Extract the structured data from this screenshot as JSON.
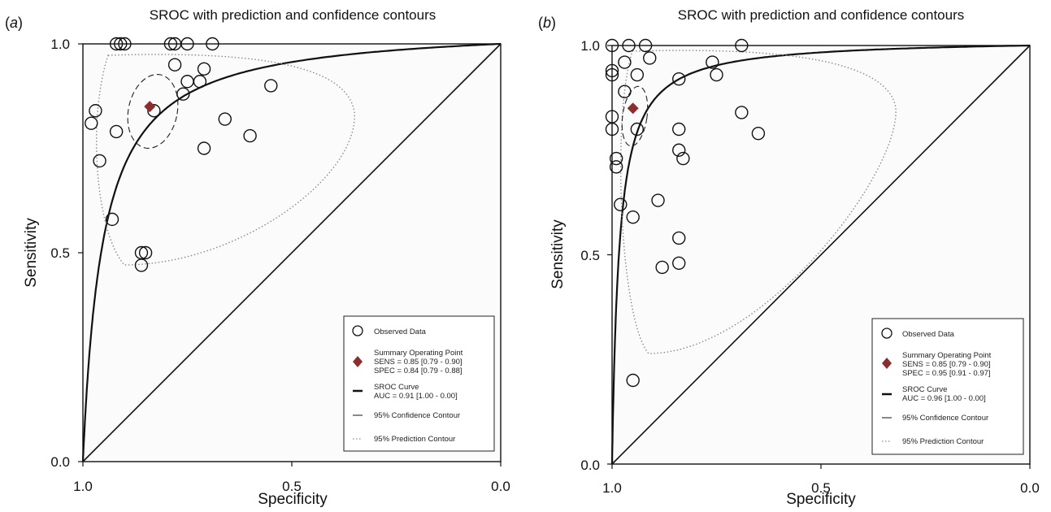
{
  "chart_data": [
    {
      "panel_label": "a",
      "type": "scatter",
      "title": "SROC with prediction and confidence contours",
      "xlabel": "Specificity",
      "ylabel": "Sensitivity",
      "xlim": [
        1.0,
        0.0
      ],
      "ylim": [
        0.0,
        1.0
      ],
      "xticks": [
        "1.0",
        "0.5",
        "0.0"
      ],
      "yticks": [
        "0.0",
        "0.5",
        "1.0"
      ],
      "observed": [
        [
          0.98,
          0.81
        ],
        [
          0.97,
          0.84
        ],
        [
          0.96,
          0.72
        ],
        [
          0.93,
          0.58
        ],
        [
          0.92,
          0.79
        ],
        [
          0.92,
          1.0
        ],
        [
          0.91,
          1.0
        ],
        [
          0.9,
          1.0
        ],
        [
          0.86,
          0.5
        ],
        [
          0.86,
          0.47
        ],
        [
          0.85,
          0.5
        ],
        [
          0.83,
          0.84
        ],
        [
          0.79,
          1.0
        ],
        [
          0.78,
          1.0
        ],
        [
          0.78,
          0.95
        ],
        [
          0.76,
          0.88
        ],
        [
          0.75,
          0.91
        ],
        [
          0.75,
          1.0
        ],
        [
          0.72,
          0.91
        ],
        [
          0.71,
          0.94
        ],
        [
          0.71,
          0.75
        ],
        [
          0.69,
          1.0
        ],
        [
          0.66,
          0.82
        ],
        [
          0.6,
          0.78
        ],
        [
          0.55,
          0.9
        ]
      ],
      "summary_point": {
        "spec": 0.84,
        "sens": 0.85
      },
      "sroc_auc": 0.91,
      "legend": {
        "observed": "Observed Data",
        "summary_title": "Summary Operating Point",
        "summary_sens": "SENS = 0.85 [0.79 - 0.90]",
        "summary_spec": "SPEC = 0.84 [0.79 - 0.88]",
        "sroc_title": "SROC Curve",
        "sroc_auc": "AUC = 0.91 [1.00 - 0.00]",
        "confidence": "95% Confidence Contour",
        "prediction": "95% Prediction Contour"
      },
      "colors": {
        "summary": "#8b2e2e",
        "line": "#111111",
        "prediction": "#888888"
      }
    },
    {
      "panel_label": "b",
      "type": "scatter",
      "title": "SROC with prediction and confidence contours",
      "xlabel": "Specificity",
      "ylabel": "Sensitivity",
      "xlim": [
        1.0,
        0.0
      ],
      "ylim": [
        0.0,
        1.0
      ],
      "xticks": [
        "1.0",
        "0.5",
        "0.0"
      ],
      "yticks": [
        "0.0",
        "0.5",
        "1.0"
      ],
      "observed": [
        [
          1.0,
          1.0
        ],
        [
          1.0,
          0.94
        ],
        [
          1.0,
          0.93
        ],
        [
          1.0,
          0.83
        ],
        [
          1.0,
          0.8
        ],
        [
          0.99,
          0.73
        ],
        [
          0.99,
          0.71
        ],
        [
          0.98,
          0.62
        ],
        [
          0.97,
          0.89
        ],
        [
          0.97,
          0.96
        ],
        [
          0.96,
          1.0
        ],
        [
          0.95,
          0.59
        ],
        [
          0.95,
          0.2
        ],
        [
          0.94,
          0.8
        ],
        [
          0.94,
          0.93
        ],
        [
          0.92,
          1.0
        ],
        [
          0.91,
          0.97
        ],
        [
          0.89,
          0.63
        ],
        [
          0.88,
          0.47
        ],
        [
          0.84,
          0.92
        ],
        [
          0.84,
          0.8
        ],
        [
          0.84,
          0.75
        ],
        [
          0.84,
          0.54
        ],
        [
          0.84,
          0.48
        ],
        [
          0.83,
          0.73
        ],
        [
          0.76,
          0.96
        ],
        [
          0.75,
          0.93
        ],
        [
          0.69,
          1.0
        ],
        [
          0.69,
          0.84
        ],
        [
          0.65,
          0.79
        ]
      ],
      "summary_point": {
        "spec": 0.95,
        "sens": 0.85
      },
      "sroc_auc": 0.96,
      "legend": {
        "observed": "Observed Data",
        "summary_title": "Summary Operating Point",
        "summary_sens": "SENS = 0.85 [0.79 - 0.90]",
        "summary_spec": "SPEC = 0.95 [0.91 - 0.97]",
        "sroc_title": "SROC Curve",
        "sroc_auc": "AUC = 0.96 [1.00 - 0.00]",
        "confidence": "95% Confidence Contour",
        "prediction": "95% Prediction Contour"
      },
      "colors": {
        "summary": "#8b2e2e",
        "line": "#111111",
        "prediction": "#888888"
      }
    }
  ]
}
